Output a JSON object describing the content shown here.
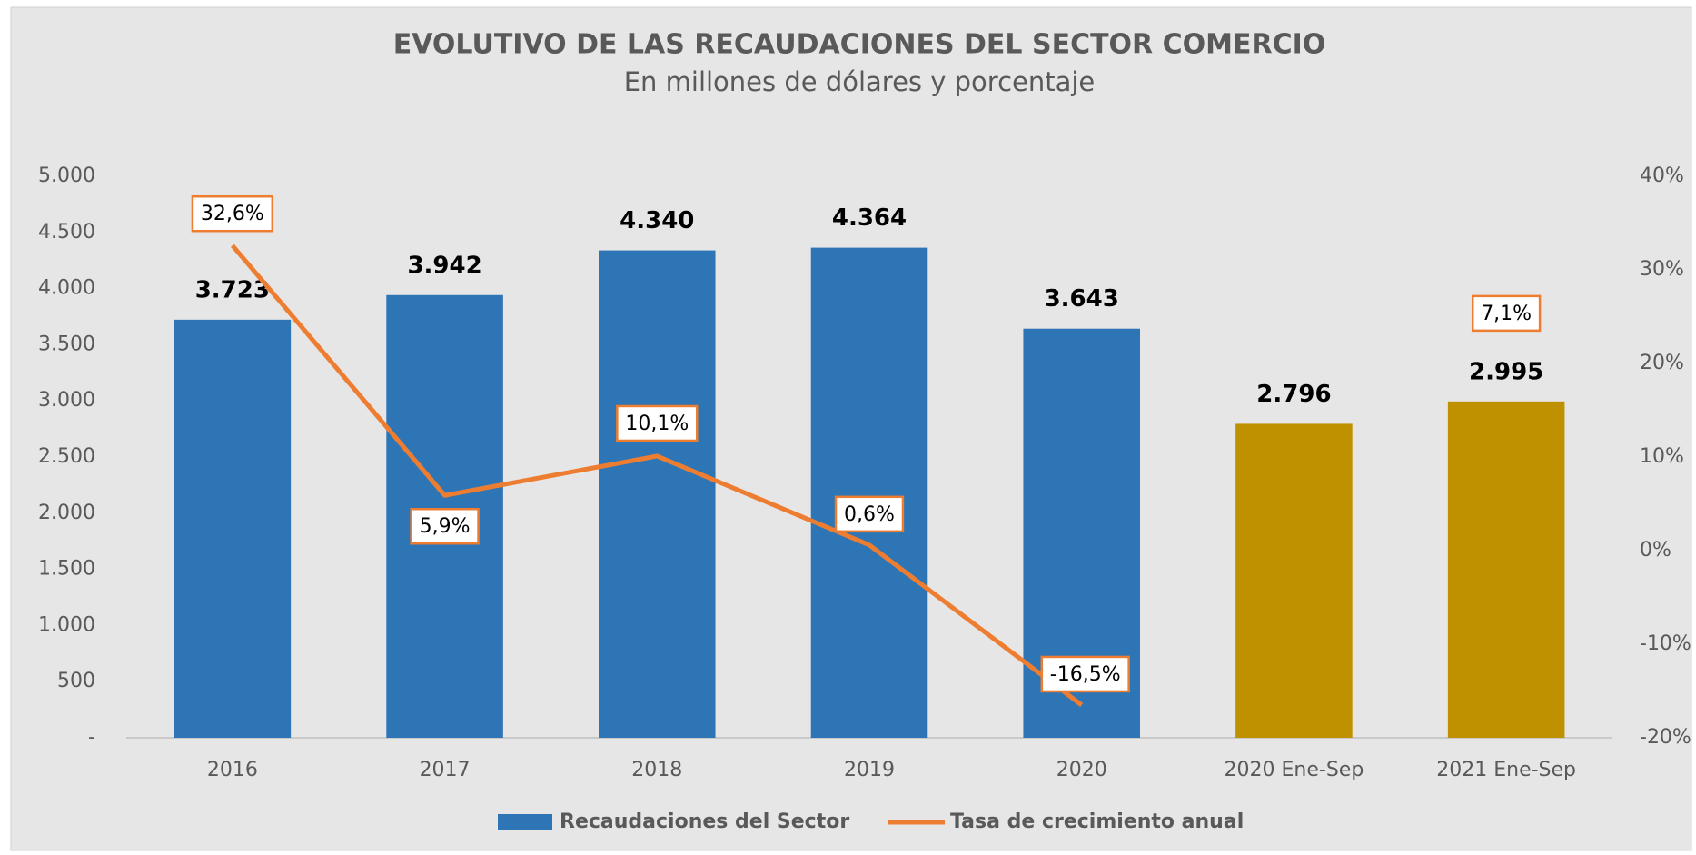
{
  "chart_data": {
    "type": "bar_line",
    "title": "EVOLUTIVO DE LAS RECAUDACIONES DEL SECTOR COMERCIO",
    "subtitle": "En millones de dólares y porcentaje",
    "categories": [
      "2016",
      "2017",
      "2018",
      "2019",
      "2020",
      "2020 Ene-Sep",
      "2021 Ene-Sep"
    ],
    "series": [
      {
        "name": "Recaudaciones del Sector",
        "type": "bar",
        "color": "#2e75b6",
        "colors": [
          "#2e75b6",
          "#2e75b6",
          "#2e75b6",
          "#2e75b6",
          "#2e75b6",
          "#bf9000",
          "#bf9000"
        ],
        "values": [
          3723,
          3942,
          4340,
          4364,
          3643,
          2796,
          2995
        ],
        "value_labels": [
          "3.723",
          "3.942",
          "4.340",
          "4.364",
          "3.643",
          "2.796",
          "2.995"
        ]
      },
      {
        "name": "Tasa de crecimiento anual",
        "type": "line",
        "axis": "y2",
        "color": "#ed7d31",
        "values": [
          32.6,
          5.9,
          10.1,
          0.6,
          -16.5,
          null,
          7.1
        ],
        "value_labels": [
          "32,6%",
          "5,9%",
          "10,1%",
          "0,6%",
          "-16,5%",
          null,
          "7,1%"
        ]
      }
    ],
    "ylim": [
      0,
      5000
    ],
    "yticks": [
      {
        "value": 0,
        "label": "-"
      },
      500,
      {
        "value": 1000,
        "label": "1.000"
      },
      {
        "value": 1500,
        "label": "1.500"
      },
      {
        "value": 2000,
        "label": "2.000"
      },
      {
        "value": 2500,
        "label": "2.500"
      },
      {
        "value": 3000,
        "label": "3.000"
      },
      {
        "value": 3500,
        "label": "3.500"
      },
      {
        "value": 4000,
        "label": "4.000"
      },
      {
        "value": 4500,
        "label": "4.500"
      },
      {
        "value": 5000,
        "label": "5.000"
      }
    ],
    "y2lim": [
      -20,
      40
    ],
    "y2ticks": [
      {
        "value": -20,
        "label": "-20%"
      },
      {
        "value": -10,
        "label": "-10%"
      },
      {
        "value": 0,
        "label": "0%"
      },
      {
        "value": 10,
        "label": "10%"
      },
      {
        "value": 20,
        "label": "20%"
      },
      {
        "value": 30,
        "label": "30%"
      },
      {
        "value": 40,
        "label": "40%"
      }
    ],
    "legend": "bottom"
  }
}
